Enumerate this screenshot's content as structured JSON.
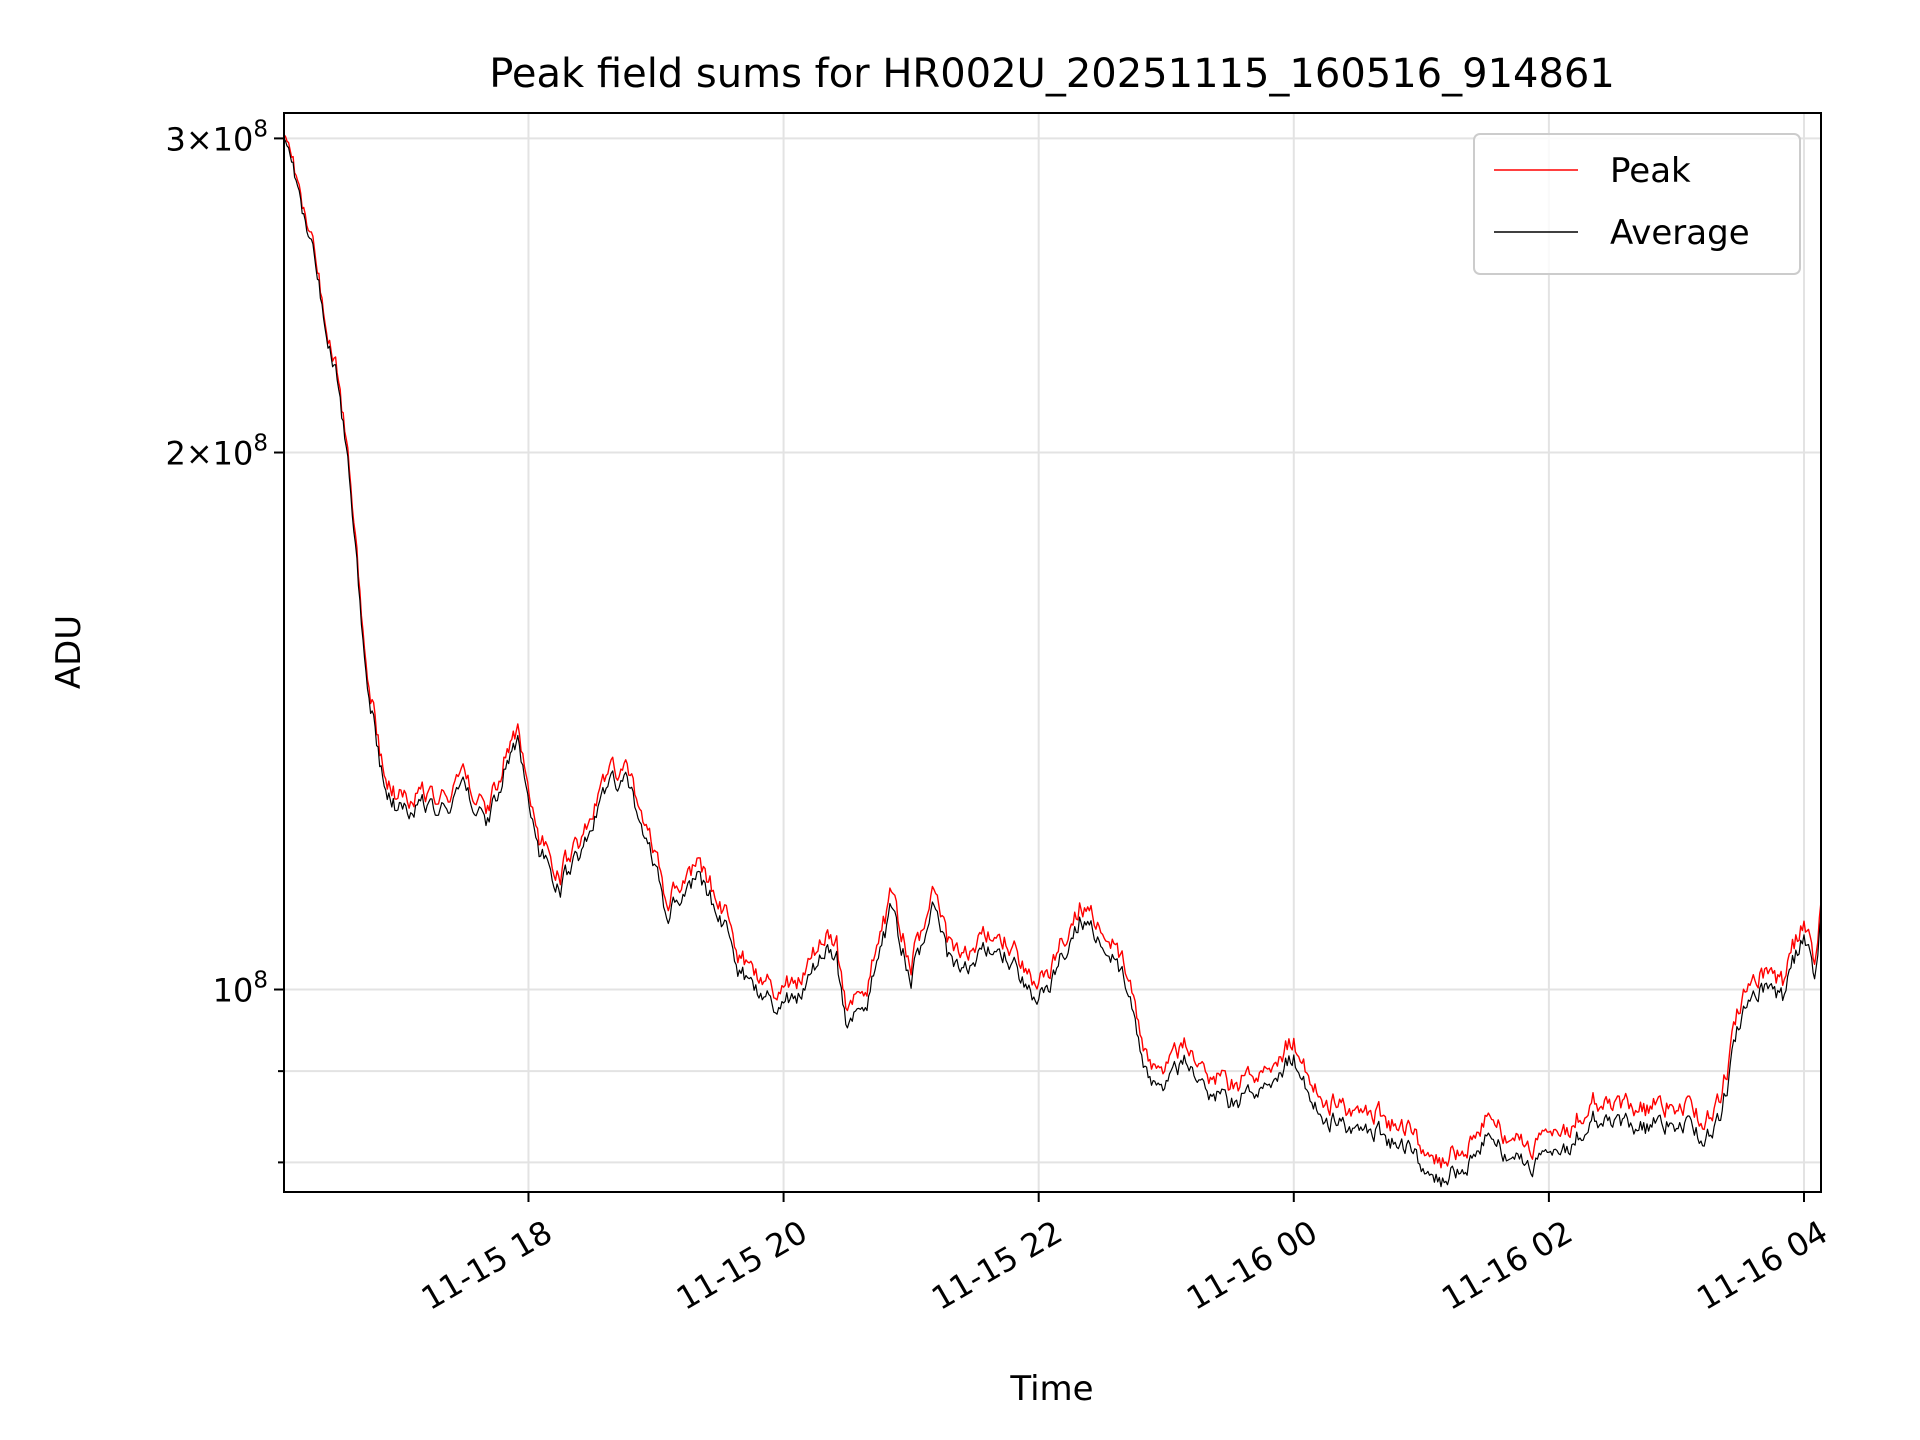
{
  "chart_data": {
    "type": "line",
    "title": "Peak field sums for HR002U_20251115_160516_914861",
    "xlabel": "Time",
    "ylabel": "ADU",
    "x_range": [
      "2025-11-15 16:05",
      "2025-11-16 04:08"
    ],
    "x_ticks": [
      {
        "t": "2025-11-15 18:00",
        "label": "11-15 18"
      },
      {
        "t": "2025-11-15 20:00",
        "label": "11-15 20"
      },
      {
        "t": "2025-11-15 22:00",
        "label": "11-15 22"
      },
      {
        "t": "2025-11-16 00:00",
        "label": "11-16 00"
      },
      {
        "t": "2025-11-16 02:00",
        "label": "11-16 02"
      },
      {
        "t": "2025-11-16 04:00",
        "label": "11-16 04"
      }
    ],
    "y_scale": "log",
    "ylim": [
      77000000,
      310000000
    ],
    "y_major_ticks": [
      {
        "value": 100000000,
        "mant": "",
        "exp": "8"
      },
      {
        "value": 200000000,
        "mant": "2",
        "exp": "8"
      },
      {
        "value": 300000000,
        "mant": "3",
        "exp": "8"
      }
    ],
    "y_minor_ticks": [
      80000000,
      90000000
    ],
    "grid": true,
    "legend_position": "top-right",
    "series": [
      {
        "name": "Peak",
        "color": "#ff0000",
        "points": [
          [
            "2025-11-15 16:05",
            305000000
          ],
          [
            "2025-11-15 16:10",
            290000000
          ],
          [
            "2025-11-15 16:15",
            270000000
          ],
          [
            "2025-11-15 16:20",
            255000000
          ],
          [
            "2025-11-15 16:25",
            238000000
          ],
          [
            "2025-11-15 16:30",
            222000000
          ],
          [
            "2025-11-15 16:35",
            200000000
          ],
          [
            "2025-11-15 16:40",
            170000000
          ],
          [
            "2025-11-15 16:45",
            148000000
          ],
          [
            "2025-11-15 16:50",
            136000000
          ],
          [
            "2025-11-15 16:55",
            130000000
          ],
          [
            "2025-11-15 17:00",
            128000000
          ],
          [
            "2025-11-15 17:10",
            130000000
          ],
          [
            "2025-11-15 17:20",
            128000000
          ],
          [
            "2025-11-15 17:30",
            132000000
          ],
          [
            "2025-11-15 17:40",
            126000000
          ],
          [
            "2025-11-15 17:50",
            136000000
          ],
          [
            "2025-11-15 17:55",
            140000000
          ],
          [
            "2025-11-15 18:05",
            122000000
          ],
          [
            "2025-11-15 18:15",
            116000000
          ],
          [
            "2025-11-15 18:25",
            122000000
          ],
          [
            "2025-11-15 18:35",
            130000000
          ],
          [
            "2025-11-15 18:45",
            134000000
          ],
          [
            "2025-11-15 18:50",
            128000000
          ],
          [
            "2025-11-15 19:00",
            118000000
          ],
          [
            "2025-11-15 19:05",
            112000000
          ],
          [
            "2025-11-15 19:15",
            116000000
          ],
          [
            "2025-11-15 19:20",
            118000000
          ],
          [
            "2025-11-15 19:30",
            112000000
          ],
          [
            "2025-11-15 19:40",
            104000000
          ],
          [
            "2025-11-15 19:50",
            101000000
          ],
          [
            "2025-11-15 20:00",
            100000000
          ],
          [
            "2025-11-15 20:10",
            102000000
          ],
          [
            "2025-11-15 20:20",
            108000000
          ],
          [
            "2025-11-15 20:25",
            106000000
          ],
          [
            "2025-11-15 20:30",
            96000000
          ],
          [
            "2025-11-15 20:40",
            101000000
          ],
          [
            "2025-11-15 20:50",
            112000000
          ],
          [
            "2025-11-15 21:00",
            104000000
          ],
          [
            "2025-11-15 21:10",
            112000000
          ],
          [
            "2025-11-15 21:20",
            104000000
          ],
          [
            "2025-11-15 21:30",
            106000000
          ],
          [
            "2025-11-15 21:40",
            108000000
          ],
          [
            "2025-11-15 21:50",
            104000000
          ],
          [
            "2025-11-15 22:00",
            100000000
          ],
          [
            "2025-11-15 22:10",
            106000000
          ],
          [
            "2025-11-15 22:20",
            112000000
          ],
          [
            "2025-11-15 22:30",
            108000000
          ],
          [
            "2025-11-15 22:40",
            104000000
          ],
          [
            "2025-11-15 22:50",
            92000000
          ],
          [
            "2025-11-15 23:00",
            90000000
          ],
          [
            "2025-11-15 23:10",
            94000000
          ],
          [
            "2025-11-15 23:20",
            90000000
          ],
          [
            "2025-11-15 23:30",
            88000000
          ],
          [
            "2025-11-15 23:40",
            90000000
          ],
          [
            "2025-11-15 23:50",
            92000000
          ],
          [
            "2025-11-16 00:00",
            94000000
          ],
          [
            "2025-11-16 00:10",
            88000000
          ],
          [
            "2025-11-16 00:20",
            86000000
          ],
          [
            "2025-11-16 00:30",
            86000000
          ],
          [
            "2025-11-16 00:40",
            85000000
          ],
          [
            "2025-11-16 00:50",
            84000000
          ],
          [
            "2025-11-16 01:00",
            82000000
          ],
          [
            "2025-11-16 01:10",
            80000000
          ],
          [
            "2025-11-16 01:20",
            82000000
          ],
          [
            "2025-11-16 01:30",
            84000000
          ],
          [
            "2025-11-16 01:40",
            83000000
          ],
          [
            "2025-11-16 01:50",
            82000000
          ],
          [
            "2025-11-16 02:00",
            82000000
          ],
          [
            "2025-11-16 02:10",
            84000000
          ],
          [
            "2025-11-16 02:20",
            87000000
          ],
          [
            "2025-11-16 02:30",
            87000000
          ],
          [
            "2025-11-16 02:40",
            85000000
          ],
          [
            "2025-11-16 02:50",
            86000000
          ],
          [
            "2025-11-16 03:00",
            86000000
          ],
          [
            "2025-11-16 03:10",
            85000000
          ],
          [
            "2025-11-16 03:20",
            86000000
          ],
          [
            "2025-11-16 03:30",
            98000000
          ],
          [
            "2025-11-16 03:40",
            103000000
          ],
          [
            "2025-11-16 03:50",
            101000000
          ],
          [
            "2025-11-16 04:00",
            110000000
          ],
          [
            "2025-11-16 04:05",
            104000000
          ],
          [
            "2025-11-16 04:08",
            112000000
          ]
        ]
      },
      {
        "name": "Average",
        "color": "#000000",
        "points": [
          [
            "2025-11-15 16:05",
            303000000
          ],
          [
            "2025-11-15 16:10",
            288000000
          ],
          [
            "2025-11-15 16:15",
            268000000
          ],
          [
            "2025-11-15 16:20",
            253000000
          ],
          [
            "2025-11-15 16:25",
            236000000
          ],
          [
            "2025-11-15 16:30",
            220000000
          ],
          [
            "2025-11-15 16:35",
            198000000
          ],
          [
            "2025-11-15 16:40",
            168000000
          ],
          [
            "2025-11-15 16:45",
            146000000
          ],
          [
            "2025-11-15 16:50",
            134000000
          ],
          [
            "2025-11-15 16:55",
            128000000
          ],
          [
            "2025-11-15 17:00",
            126000000
          ],
          [
            "2025-11-15 17:10",
            128000000
          ],
          [
            "2025-11-15 17:20",
            126000000
          ],
          [
            "2025-11-15 17:30",
            130000000
          ],
          [
            "2025-11-15 17:40",
            124000000
          ],
          [
            "2025-11-15 17:50",
            134000000
          ],
          [
            "2025-11-15 17:55",
            138000000
          ],
          [
            "2025-11-15 18:05",
            120000000
          ],
          [
            "2025-11-15 18:15",
            114000000
          ],
          [
            "2025-11-15 18:25",
            120000000
          ],
          [
            "2025-11-15 18:35",
            128000000
          ],
          [
            "2025-11-15 18:45",
            132000000
          ],
          [
            "2025-11-15 18:50",
            126000000
          ],
          [
            "2025-11-15 19:00",
            116000000
          ],
          [
            "2025-11-15 19:05",
            110000000
          ],
          [
            "2025-11-15 19:15",
            114000000
          ],
          [
            "2025-11-15 19:20",
            116000000
          ],
          [
            "2025-11-15 19:30",
            110000000
          ],
          [
            "2025-11-15 19:40",
            102000000
          ],
          [
            "2025-11-15 19:50",
            99000000
          ],
          [
            "2025-11-15 20:00",
            98000000
          ],
          [
            "2025-11-15 20:10",
            100000000
          ],
          [
            "2025-11-15 20:20",
            106000000
          ],
          [
            "2025-11-15 20:25",
            104000000
          ],
          [
            "2025-11-15 20:30",
            94000000
          ],
          [
            "2025-11-15 20:40",
            99000000
          ],
          [
            "2025-11-15 20:50",
            110000000
          ],
          [
            "2025-11-15 21:00",
            102000000
          ],
          [
            "2025-11-15 21:10",
            110000000
          ],
          [
            "2025-11-15 21:20",
            102000000
          ],
          [
            "2025-11-15 21:30",
            104000000
          ],
          [
            "2025-11-15 21:40",
            106000000
          ],
          [
            "2025-11-15 21:50",
            102000000
          ],
          [
            "2025-11-15 22:00",
            98000000
          ],
          [
            "2025-11-15 22:10",
            104000000
          ],
          [
            "2025-11-15 22:20",
            110000000
          ],
          [
            "2025-11-15 22:30",
            106000000
          ],
          [
            "2025-11-15 22:40",
            102000000
          ],
          [
            "2025-11-15 22:50",
            90000000
          ],
          [
            "2025-11-15 23:00",
            88000000
          ],
          [
            "2025-11-15 23:10",
            92000000
          ],
          [
            "2025-11-15 23:20",
            88000000
          ],
          [
            "2025-11-15 23:30",
            86000000
          ],
          [
            "2025-11-15 23:40",
            88000000
          ],
          [
            "2025-11-15 23:50",
            90000000
          ],
          [
            "2025-11-16 00:00",
            92000000
          ],
          [
            "2025-11-16 00:10",
            86000000
          ],
          [
            "2025-11-16 00:20",
            84000000
          ],
          [
            "2025-11-16 00:30",
            84000000
          ],
          [
            "2025-11-16 00:40",
            83000000
          ],
          [
            "2025-11-16 00:50",
            82000000
          ],
          [
            "2025-11-16 01:00",
            80000000
          ],
          [
            "2025-11-16 01:10",
            78000000
          ],
          [
            "2025-11-16 01:20",
            80000000
          ],
          [
            "2025-11-16 01:30",
            82000000
          ],
          [
            "2025-11-16 01:40",
            81000000
          ],
          [
            "2025-11-16 01:50",
            80000000
          ],
          [
            "2025-11-16 02:00",
            80000000
          ],
          [
            "2025-11-16 02:10",
            82000000
          ],
          [
            "2025-11-16 02:20",
            85000000
          ],
          [
            "2025-11-16 02:30",
            85000000
          ],
          [
            "2025-11-16 02:40",
            83000000
          ],
          [
            "2025-11-16 02:50",
            84000000
          ],
          [
            "2025-11-16 03:00",
            84000000
          ],
          [
            "2025-11-16 03:10",
            83000000
          ],
          [
            "2025-11-16 03:20",
            84000000
          ],
          [
            "2025-11-16 03:30",
            96000000
          ],
          [
            "2025-11-16 03:40",
            101000000
          ],
          [
            "2025-11-16 03:50",
            99000000
          ],
          [
            "2025-11-16 04:00",
            108000000
          ],
          [
            "2025-11-16 04:05",
            102000000
          ],
          [
            "2025-11-16 04:08",
            110000000
          ]
        ]
      }
    ]
  }
}
